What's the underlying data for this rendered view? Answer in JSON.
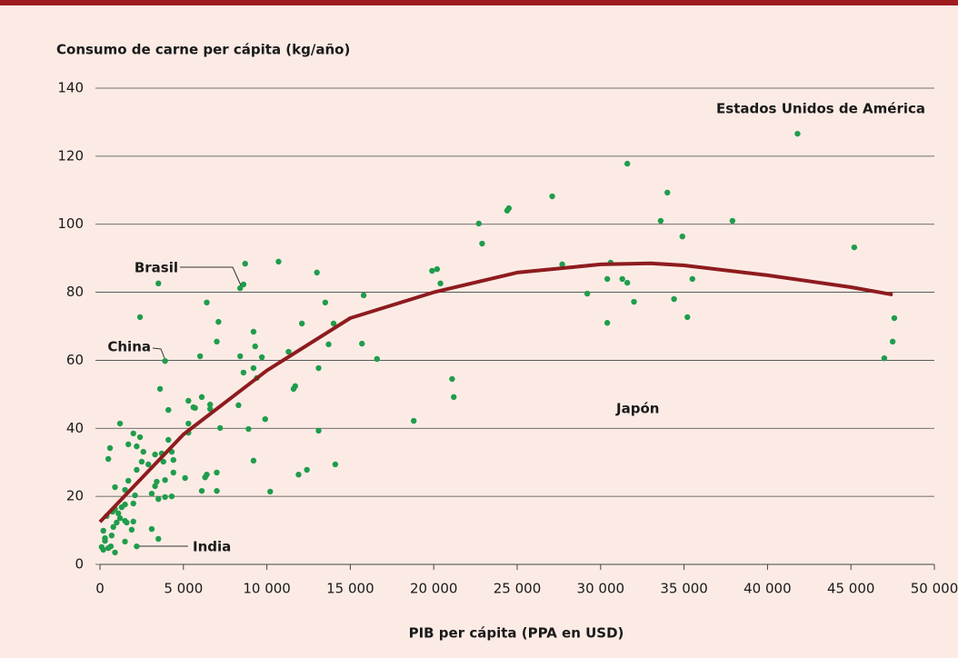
{
  "chart_data": {
    "type": "scatter",
    "title": "Consumo de carne per cápita (kg/año)",
    "x_label": "PIB per cápita (PPA en USD)",
    "xlim": [
      0,
      50000
    ],
    "ylim": [
      0,
      140
    ],
    "xticks": [
      0,
      {
        "value": 5000,
        "label": "5 000"
      },
      {
        "value": 10000,
        "label": "10 000"
      },
      {
        "value": 15000,
        "label": "15 000"
      },
      {
        "value": 20000,
        "label": "20 000"
      },
      {
        "value": 25000,
        "label": "25 000"
      },
      {
        "value": 30000,
        "label": "30 000"
      },
      {
        "value": 35000,
        "label": "35 000"
      },
      {
        "value": 40000,
        "label": "40 000"
      },
      {
        "value": 45000,
        "label": "45 000"
      },
      {
        "value": 50000,
        "label": "50 000"
      }
    ],
    "yticks": [
      0,
      20,
      40,
      60,
      80,
      100,
      120,
      140
    ],
    "grid": true,
    "points": {
      "color": "#1f9d4c",
      "x": [
        22700,
        22900,
        24500,
        24400,
        27100,
        27700,
        29200,
        30400,
        30400,
        30600,
        31600,
        31300,
        31600,
        32000,
        33600,
        34000,
        34400,
        34900,
        35200,
        35500,
        37900,
        41800,
        45200,
        47000,
        47500,
        47600,
        19900,
        20200,
        20400,
        21100,
        21200,
        18800,
        16600,
        15800,
        15700,
        14100,
        14000,
        13700,
        13500,
        13100,
        13000,
        13100,
        12400,
        11900,
        12100,
        11700,
        11600,
        11300,
        10700,
        10200,
        9900,
        9700,
        9400,
        9300,
        9200,
        9200,
        9200,
        8900,
        8700,
        8600,
        8600,
        8400,
        8400,
        8300,
        7200,
        7100,
        7000,
        7000,
        7000,
        6600,
        6600,
        6400,
        6400,
        6300,
        6100,
        6000,
        6100,
        5700,
        5600,
        5300,
        5300,
        5300,
        5100,
        4400,
        4400,
        4300,
        4300,
        4100,
        4100,
        3900,
        3900,
        3900,
        3800,
        3600,
        3500,
        3700,
        3500,
        3400,
        3300,
        3300,
        3500,
        3100,
        3100,
        2900,
        2600,
        2500,
        2400,
        2400,
        2200,
        2200,
        2000,
        2200,
        2100,
        2000,
        2000,
        1700,
        1700,
        1500,
        1500,
        1500,
        1500,
        1200,
        1300,
        1200,
        1100,
        1000,
        900,
        900,
        800,
        700,
        650,
        600,
        500,
        400,
        300,
        300,
        200,
        200,
        100,
        500,
        750,
        900,
        1600,
        1900
      ],
      "y": [
        100.2,
        94.3,
        104.7,
        104,
        108.2,
        88.2,
        79.6,
        71,
        83.9,
        88.7,
        117.8,
        83.9,
        82.8,
        77.2,
        101,
        109.3,
        78,
        96.4,
        72.7,
        83.9,
        101,
        126.6,
        93.2,
        60.6,
        65.5,
        72.4,
        86.3,
        86.8,
        82.6,
        54.5,
        49.2,
        42.2,
        60.4,
        79.1,
        64.9,
        29.4,
        70.8,
        64.7,
        77,
        57.7,
        85.8,
        39.3,
        27.8,
        26.4,
        70.8,
        52.4,
        51.6,
        62.5,
        89,
        21.4,
        42.7,
        60.9,
        54.8,
        64.1,
        68.4,
        57.7,
        30.5,
        39.8,
        88.4,
        56.4,
        82.3,
        81.2,
        61.2,
        46.8,
        40.1,
        71.3,
        65.5,
        27,
        21.6,
        47,
        45.7,
        77,
        26.4,
        25.6,
        49.2,
        61.2,
        21.6,
        46,
        46.2,
        41.4,
        38.7,
        48.1,
        25.4,
        30.7,
        27,
        33.1,
        20,
        36.6,
        45.4,
        59.8,
        24.8,
        19.8,
        30.2,
        51.6,
        82.6,
        32.6,
        19.2,
        24.3,
        32.3,
        23,
        7.5,
        10.4,
        20.8,
        29.4,
        33.1,
        30.2,
        37.4,
        72.7,
        5.3,
        34.7,
        38.5,
        27.8,
        20.3,
        17.9,
        12.6,
        24.6,
        35.3,
        17.6,
        21.9,
        12.8,
        6.7,
        41.4,
        16.8,
        13.6,
        15,
        12.3,
        3.5,
        22.7,
        11,
        8.5,
        5.3,
        34.2,
        31,
        14.2,
        6.9,
        7.7,
        4.3,
        9.9,
        5.1,
        4.8,
        15.5,
        16.3,
        12.3,
        10.2
      ]
    },
    "fit_line": {
      "color": "#8e1b1e",
      "x": [
        0,
        5000,
        10000,
        15000,
        20000,
        25000,
        30000,
        33000,
        35000,
        40000,
        45000,
        47500
      ],
      "y": [
        12.5,
        38.2,
        57,
        72.4,
        80,
        85.8,
        88.2,
        88.5,
        87.9,
        85,
        81.5,
        79.3
      ]
    },
    "annotations": [
      "Estados Unidos de América",
      "Japón",
      "Brasil",
      "China",
      "India"
    ]
  }
}
